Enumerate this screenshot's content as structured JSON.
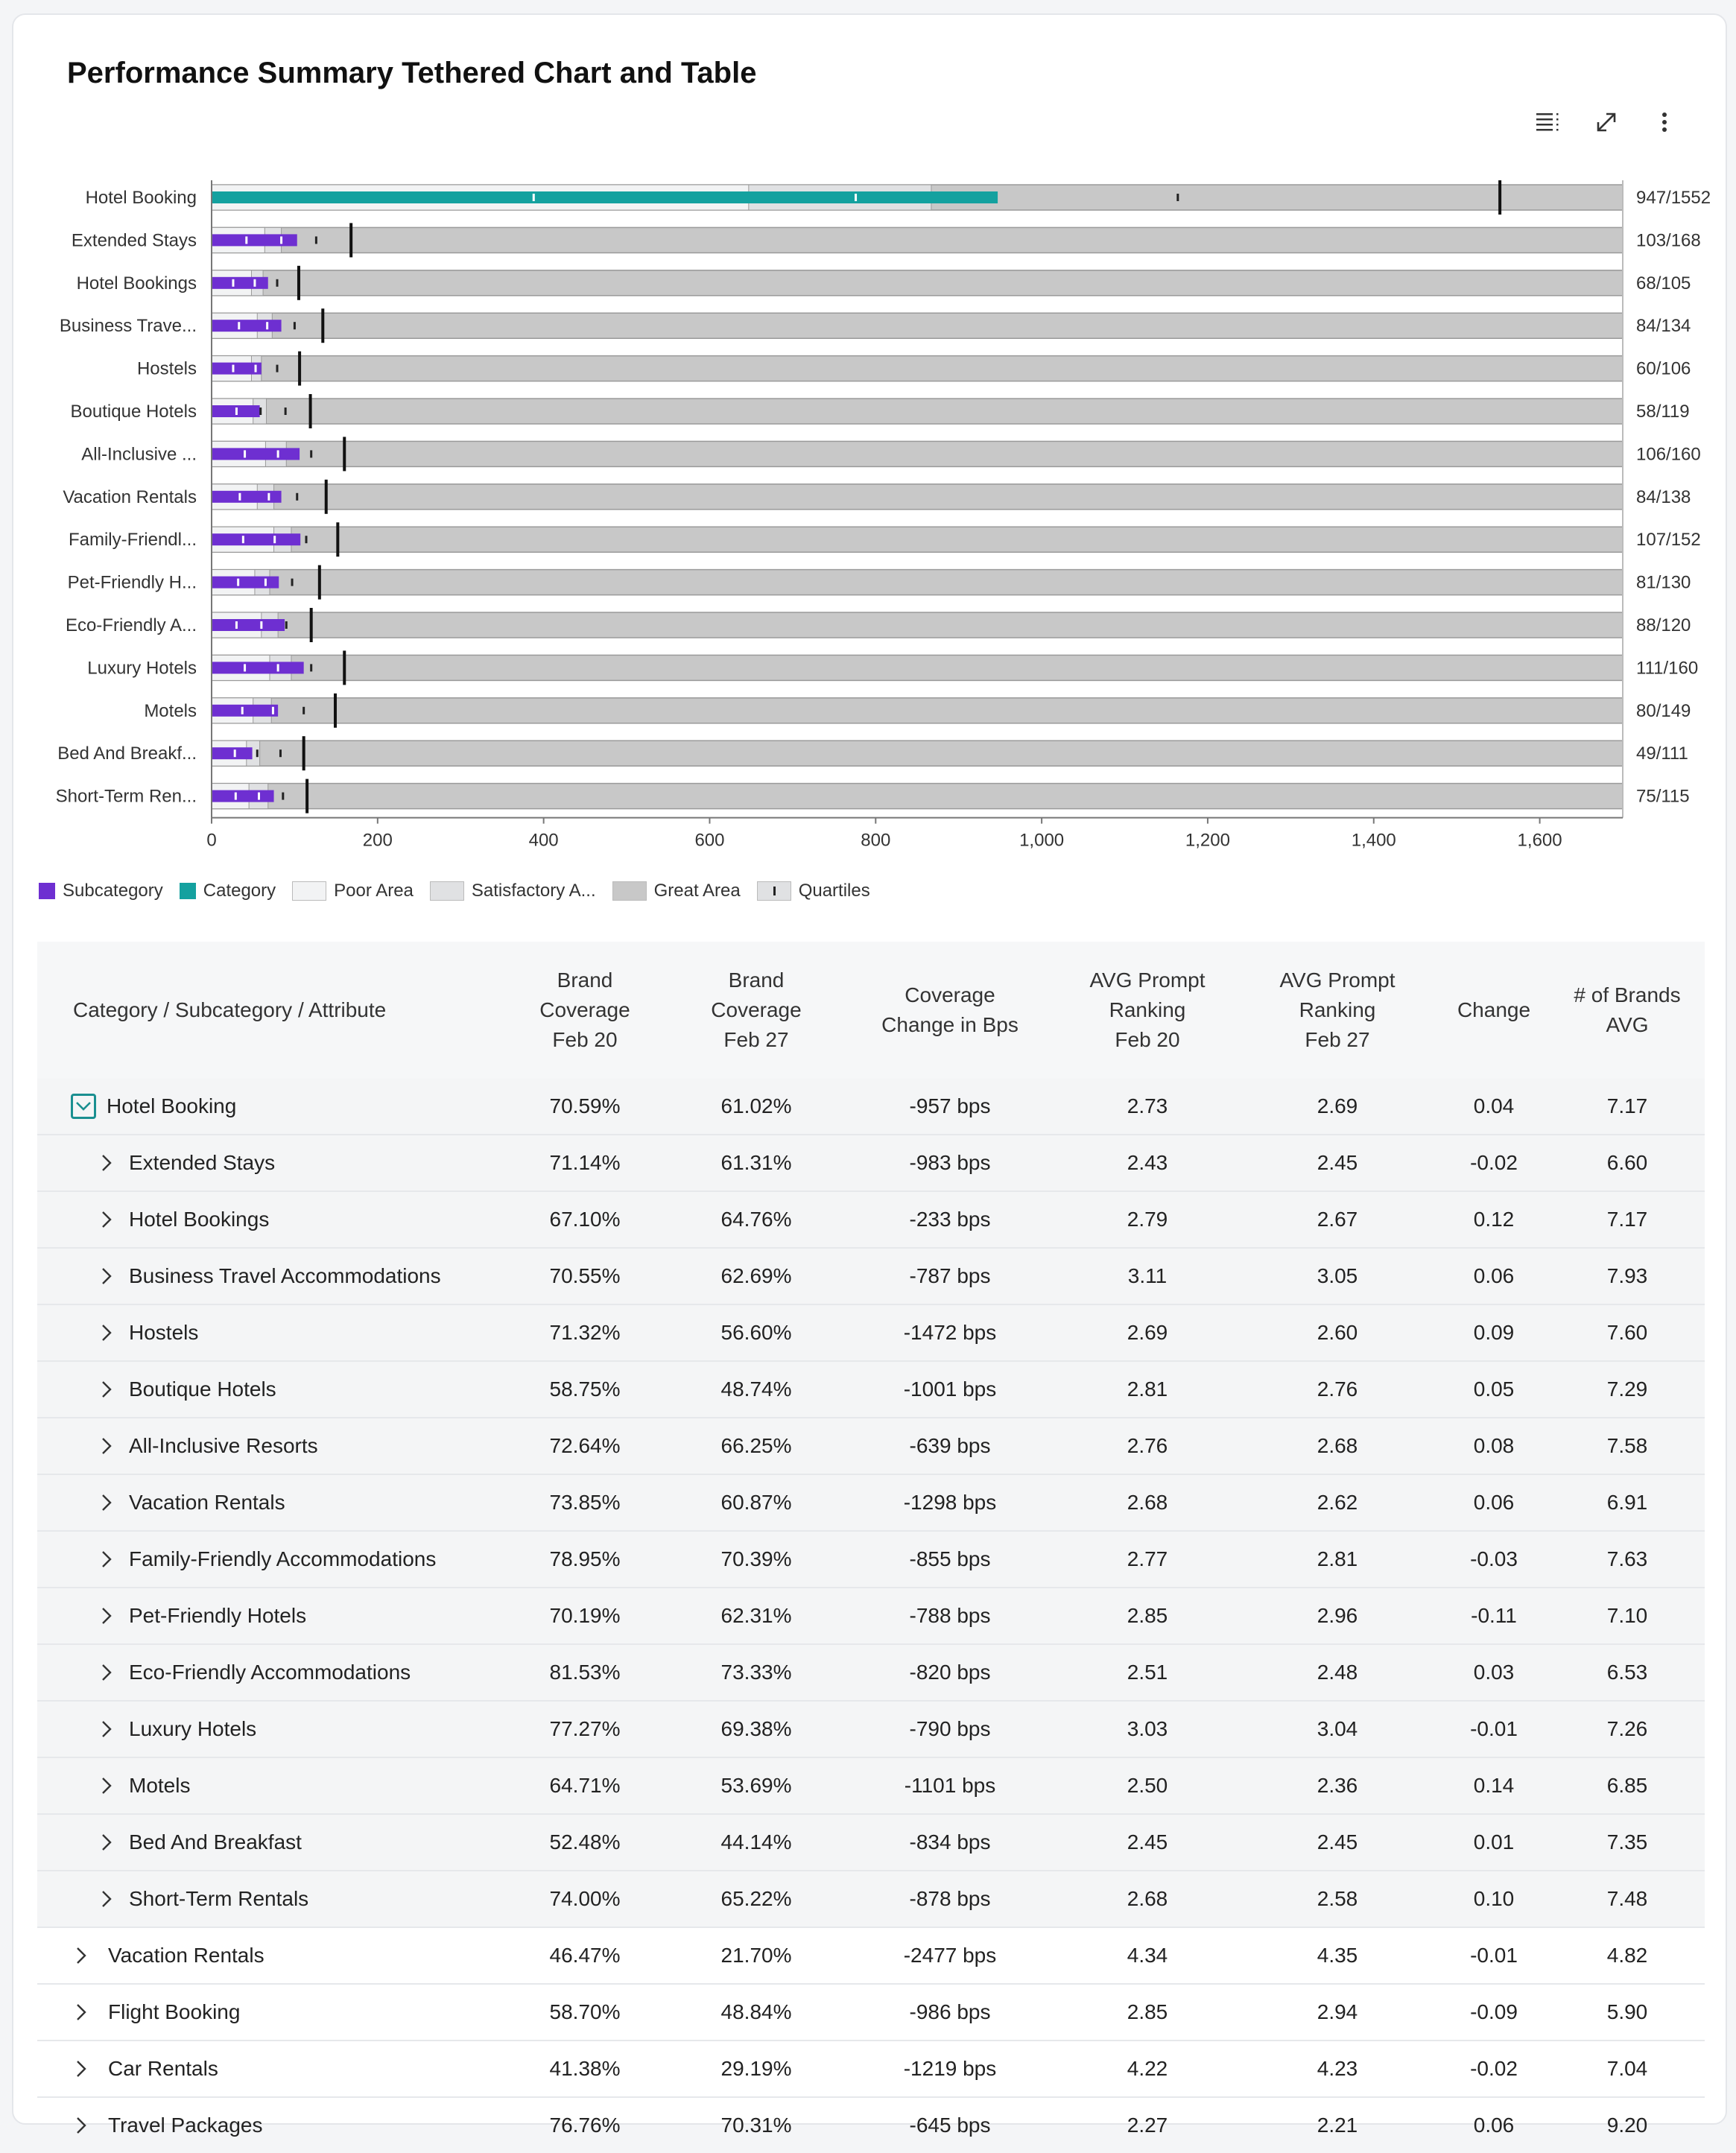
{
  "title": "Performance Summary Tethered Chart and Table",
  "toolbar": {
    "items": [
      {
        "name": "list-view-icon"
      },
      {
        "name": "expand-icon"
      },
      {
        "name": "more-options-icon"
      }
    ]
  },
  "colors": {
    "subcategory": "#6e2fd1",
    "category": "#14a19f",
    "poor": "#f2f3f4",
    "satisfactory": "#e0e1e3",
    "great": "#c8c8c8",
    "target": "#111111"
  },
  "legend": [
    {
      "label": "Subcategory",
      "swatch": "subcategory"
    },
    {
      "label": "Category",
      "swatch": "category"
    },
    {
      "label": "Poor Area",
      "swatch": "poor"
    },
    {
      "label": "Satisfactory A...",
      "swatch": "satisfactory"
    },
    {
      "label": "Great Area",
      "swatch": "great"
    },
    {
      "label": "Quartiles",
      "swatch": "quartile"
    }
  ],
  "chart_data": {
    "type": "bar",
    "subtype": "bullet",
    "title": "",
    "xlim": [
      0,
      1700
    ],
    "xticks": [
      0,
      200,
      400,
      600,
      800,
      1000,
      1200,
      1400,
      1600
    ],
    "xtick_labels": [
      "0",
      "200",
      "400",
      "600",
      "800",
      "1,000",
      "1,200",
      "1,400",
      "1,600"
    ],
    "grid": false,
    "legend_position": "bottom-left",
    "rows": [
      {
        "label": "Hotel Booking",
        "kind": "category",
        "value": 947,
        "target": 1552,
        "ratio_label": "947/1552",
        "poor": 647,
        "satisfactory": 867,
        "quartiles": [
          388,
          776,
          1164
        ]
      },
      {
        "label": "Extended Stays",
        "kind": "subcategory",
        "value": 103,
        "target": 168,
        "ratio_label": "103/168",
        "poor": 64,
        "satisfactory": 84,
        "quartiles": [
          42,
          84,
          126
        ]
      },
      {
        "label": "Hotel Bookings",
        "kind": "subcategory",
        "value": 68,
        "target": 105,
        "ratio_label": "68/105",
        "poor": 48,
        "satisfactory": 62,
        "quartiles": [
          26,
          52,
          79
        ]
      },
      {
        "label": "Business Trave...",
        "kind": "subcategory",
        "value": 84,
        "target": 134,
        "ratio_label": "84/134",
        "poor": 55,
        "satisfactory": 73,
        "quartiles": [
          33,
          67,
          100
        ]
      },
      {
        "label": "Hostels",
        "kind": "subcategory",
        "value": 60,
        "target": 106,
        "ratio_label": "60/106",
        "poor": 48,
        "satisfactory": 60,
        "quartiles": [
          26,
          53,
          79
        ]
      },
      {
        "label": "Boutique Hotels",
        "kind": "subcategory",
        "value": 58,
        "target": 119,
        "ratio_label": "58/119",
        "poor": 50,
        "satisfactory": 66,
        "quartiles": [
          30,
          59,
          89
        ]
      },
      {
        "label": "All-Inclusive ...",
        "kind": "subcategory",
        "value": 106,
        "target": 160,
        "ratio_label": "106/160",
        "poor": 65,
        "satisfactory": 90,
        "quartiles": [
          40,
          80,
          120
        ]
      },
      {
        "label": "Vacation Rentals",
        "kind": "subcategory",
        "value": 84,
        "target": 138,
        "ratio_label": "84/138",
        "poor": 55,
        "satisfactory": 75,
        "quartiles": [
          34,
          69,
          103
        ]
      },
      {
        "label": "Family-Friendl...",
        "kind": "subcategory",
        "value": 107,
        "target": 152,
        "ratio_label": "107/152",
        "poor": 75,
        "satisfactory": 96,
        "quartiles": [
          38,
          76,
          114
        ]
      },
      {
        "label": "Pet-Friendly H...",
        "kind": "subcategory",
        "value": 81,
        "target": 130,
        "ratio_label": "81/130",
        "poor": 52,
        "satisfactory": 70,
        "quartiles": [
          32,
          65,
          97
        ]
      },
      {
        "label": "Eco-Friendly A...",
        "kind": "subcategory",
        "value": 88,
        "target": 120,
        "ratio_label": "88/120",
        "poor": 60,
        "satisfactory": 80,
        "quartiles": [
          30,
          60,
          90
        ]
      },
      {
        "label": "Luxury Hotels",
        "kind": "subcategory",
        "value": 111,
        "target": 160,
        "ratio_label": "111/160",
        "poor": 70,
        "satisfactory": 96,
        "quartiles": [
          40,
          80,
          120
        ]
      },
      {
        "label": "Motels",
        "kind": "subcategory",
        "value": 80,
        "target": 149,
        "ratio_label": "80/149",
        "poor": 50,
        "satisfactory": 72,
        "quartiles": [
          37,
          74,
          111
        ]
      },
      {
        "label": "Bed And Breakf...",
        "kind": "subcategory",
        "value": 49,
        "target": 111,
        "ratio_label": "49/111",
        "poor": 42,
        "satisfactory": 58,
        "quartiles": [
          28,
          55,
          83
        ]
      },
      {
        "label": "Short-Term Ren...",
        "kind": "subcategory",
        "value": 75,
        "target": 115,
        "ratio_label": "75/115",
        "poor": 45,
        "satisfactory": 68,
        "quartiles": [
          29,
          57,
          86
        ]
      }
    ]
  },
  "table": {
    "headers": [
      "Category / Subcategory / Attribute",
      "Brand\nCoverage\nFeb 20",
      "Brand\nCoverage\nFeb 27",
      "Coverage\nChange in Bps",
      "AVG Prompt\nRanking\nFeb 20",
      "AVG Prompt\nRanking\nFeb 27",
      "Change",
      "# of Brands\nAVG"
    ],
    "rows": [
      {
        "name": "Hotel Booking",
        "level": 0,
        "expanded": true,
        "values": [
          "70.59%",
          "61.02%",
          "-957 bps",
          "2.73",
          "2.69",
          "0.04",
          "7.17"
        ]
      },
      {
        "name": "Extended Stays",
        "level": 1,
        "values": [
          "71.14%",
          "61.31%",
          "-983 bps",
          "2.43",
          "2.45",
          "-0.02",
          "6.60"
        ]
      },
      {
        "name": "Hotel Bookings",
        "level": 1,
        "values": [
          "67.10%",
          "64.76%",
          "-233 bps",
          "2.79",
          "2.67",
          "0.12",
          "7.17"
        ]
      },
      {
        "name": "Business Travel Accommodations",
        "level": 1,
        "values": [
          "70.55%",
          "62.69%",
          "-787 bps",
          "3.11",
          "3.05",
          "0.06",
          "7.93"
        ]
      },
      {
        "name": "Hostels",
        "level": 1,
        "values": [
          "71.32%",
          "56.60%",
          "-1472 bps",
          "2.69",
          "2.60",
          "0.09",
          "7.60"
        ]
      },
      {
        "name": "Boutique Hotels",
        "level": 1,
        "values": [
          "58.75%",
          "48.74%",
          "-1001 bps",
          "2.81",
          "2.76",
          "0.05",
          "7.29"
        ]
      },
      {
        "name": "All-Inclusive Resorts",
        "level": 1,
        "values": [
          "72.64%",
          "66.25%",
          "-639 bps",
          "2.76",
          "2.68",
          "0.08",
          "7.58"
        ]
      },
      {
        "name": "Vacation Rentals",
        "level": 1,
        "values": [
          "73.85%",
          "60.87%",
          "-1298 bps",
          "2.68",
          "2.62",
          "0.06",
          "6.91"
        ]
      },
      {
        "name": "Family-Friendly Accommodations",
        "level": 1,
        "values": [
          "78.95%",
          "70.39%",
          "-855 bps",
          "2.77",
          "2.81",
          "-0.03",
          "7.63"
        ]
      },
      {
        "name": "Pet-Friendly Hotels",
        "level": 1,
        "values": [
          "70.19%",
          "62.31%",
          "-788 bps",
          "2.85",
          "2.96",
          "-0.11",
          "7.10"
        ]
      },
      {
        "name": "Eco-Friendly Accommodations",
        "level": 1,
        "values": [
          "81.53%",
          "73.33%",
          "-820 bps",
          "2.51",
          "2.48",
          "0.03",
          "6.53"
        ]
      },
      {
        "name": "Luxury Hotels",
        "level": 1,
        "values": [
          "77.27%",
          "69.38%",
          "-790 bps",
          "3.03",
          "3.04",
          "-0.01",
          "7.26"
        ]
      },
      {
        "name": "Motels",
        "level": 1,
        "values": [
          "64.71%",
          "53.69%",
          "-1101 bps",
          "2.50",
          "2.36",
          "0.14",
          "6.85"
        ]
      },
      {
        "name": "Bed And Breakfast",
        "level": 1,
        "values": [
          "52.48%",
          "44.14%",
          "-834 bps",
          "2.45",
          "2.45",
          "0.01",
          "7.35"
        ]
      },
      {
        "name": "Short-Term Rentals",
        "level": 1,
        "values": [
          "74.00%",
          "65.22%",
          "-878 bps",
          "2.68",
          "2.58",
          "0.10",
          "7.48"
        ]
      },
      {
        "name": "Vacation Rentals",
        "level": 0,
        "values": [
          "46.47%",
          "21.70%",
          "-2477 bps",
          "4.34",
          "4.35",
          "-0.01",
          "4.82"
        ]
      },
      {
        "name": "Flight Booking",
        "level": 0,
        "values": [
          "58.70%",
          "48.84%",
          "-986 bps",
          "2.85",
          "2.94",
          "-0.09",
          "5.90"
        ]
      },
      {
        "name": "Car Rentals",
        "level": 0,
        "values": [
          "41.38%",
          "29.19%",
          "-1219 bps",
          "4.22",
          "4.23",
          "-0.02",
          "7.04"
        ]
      },
      {
        "name": "Travel Packages",
        "level": 0,
        "values": [
          "76.76%",
          "70.31%",
          "-645 bps",
          "2.27",
          "2.21",
          "0.06",
          "9.20"
        ]
      }
    ]
  }
}
